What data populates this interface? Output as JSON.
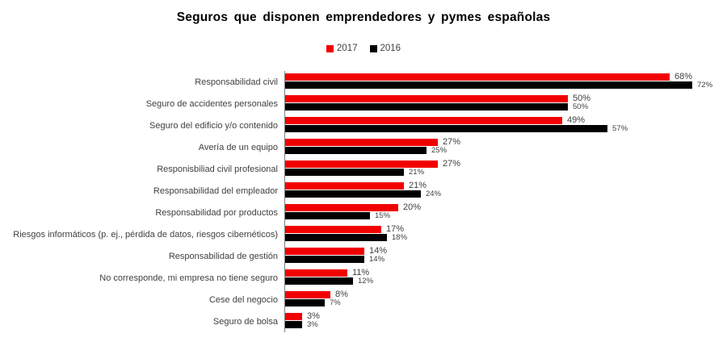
{
  "page": {
    "background": "#ffffff"
  },
  "chart_data": {
    "type": "bar",
    "orientation": "horizontal",
    "title": "Seguros que disponen emprendedores y pymes españolas",
    "legend_position": "top",
    "grid": false,
    "value_suffix": "%",
    "xlim": [
      0,
      78
    ],
    "categories": [
      "Responsabilidad civil",
      "Seguro de accidentes personales",
      "Seguro del edificio y/o contenido",
      "Avería de un equipo",
      "Responisbiliad civil profesional",
      "Responsabilidad del empleador",
      "Responsabilidad por productos",
      "Riesgos informáticos (p. ej., pérdida de datos, riesgos cibernéticos)",
      "Responsabilidad de gestión",
      "No corresponde, mi empresa no tiene seguro",
      "Cese del negocio",
      "Seguro de bolsa"
    ],
    "series": [
      {
        "name": "2017",
        "color": "#f10000",
        "values": [
          68,
          50,
          49,
          27,
          27,
          21,
          20,
          17,
          14,
          11,
          8,
          3
        ]
      },
      {
        "name": "2016",
        "color": "#000000",
        "values": [
          72,
          50,
          57,
          25,
          21,
          24,
          15,
          18,
          14,
          12,
          7,
          3
        ]
      }
    ],
    "axis_color": "#7f7f7f",
    "label_color": "#404040",
    "title_color": "#000000"
  }
}
